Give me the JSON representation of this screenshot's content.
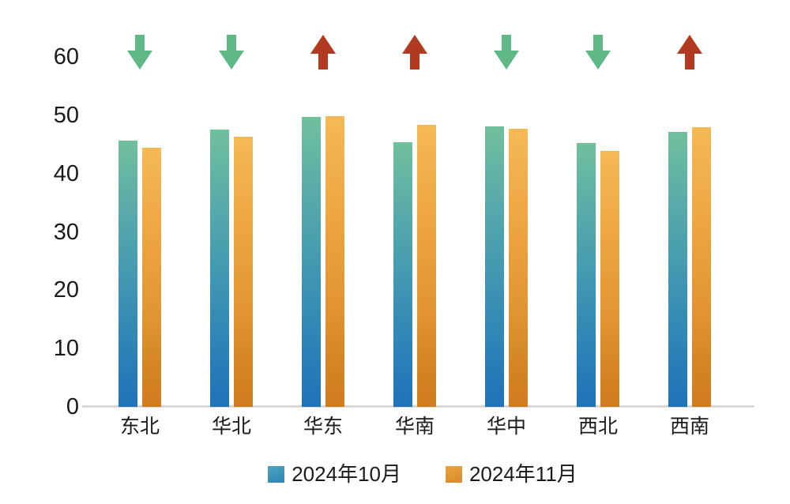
{
  "chart_data": {
    "type": "bar",
    "title": "",
    "categories": [
      "东北",
      "华北",
      "华东",
      "华南",
      "华中",
      "西北",
      "西南"
    ],
    "series": [
      {
        "name": "2024年10月",
        "values": [
          45.7,
          47.6,
          49.7,
          45.4,
          48.1,
          45.2,
          47.1
        ]
      },
      {
        "name": "2024年11月",
        "values": [
          44.4,
          46.3,
          49.9,
          48.3,
          47.7,
          43.9,
          48.0
        ]
      }
    ],
    "trend_arrows": [
      "down",
      "down",
      "up",
      "up",
      "down",
      "down",
      "up"
    ],
    "y_axis": {
      "min": 0,
      "max": 60,
      "tick_interval": 10,
      "ticks": [
        0,
        10,
        20,
        30,
        40,
        50,
        60
      ]
    },
    "grid": false,
    "legend_position": "bottom",
    "colors": {
      "series1_gradient_top": "#70c09d",
      "series1_gradient_bottom": "#1f72b8",
      "series2_gradient_top": "#f4b956",
      "series2_gradient_bottom": "#cf7c1e",
      "arrow_up": "#b23a20",
      "arrow_down": "#5eb987",
      "axis_line": "#d9d9d9",
      "text": "#1a1a1a"
    }
  }
}
